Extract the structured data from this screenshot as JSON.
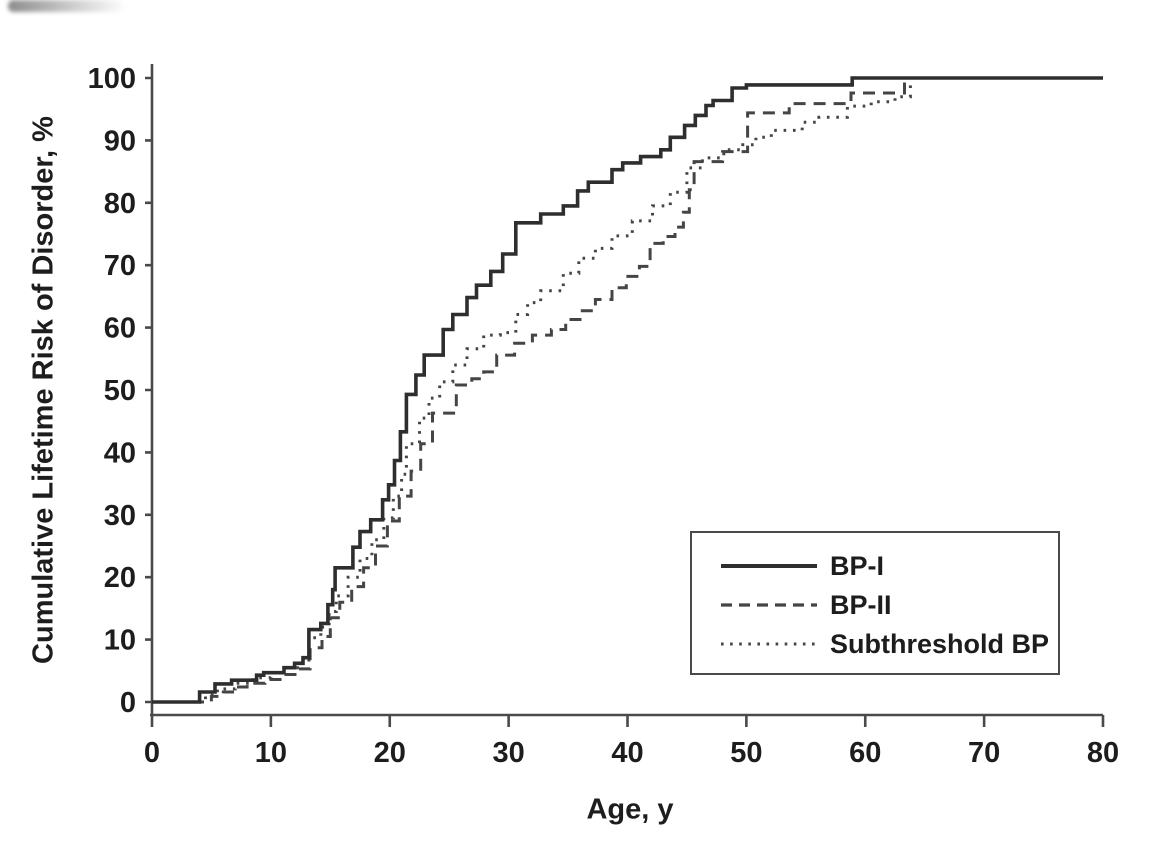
{
  "figure": {
    "background": "#ffffff",
    "artifact": "dark smudge at top-left edge"
  },
  "chart_data": {
    "type": "line",
    "subtype": "step-after",
    "title": "",
    "xlabel": "Age, y",
    "ylabel": "Cumulative Lifetime Risk of Disorder, %",
    "xlim": [
      0,
      80
    ],
    "ylim": [
      0,
      100
    ],
    "xticks": [
      0,
      10,
      20,
      30,
      40,
      50,
      60,
      70,
      80
    ],
    "yticks": [
      0,
      10,
      20,
      30,
      40,
      50,
      60,
      70,
      80,
      90,
      100
    ],
    "grid": false,
    "legend_position": "lower-right",
    "axis_color": "#4a4a4a",
    "text_color": "#1d1d1d",
    "series": [
      {
        "name": "BP-I",
        "line_style": "solid",
        "color": "#2e2e2e",
        "points": [
          [
            0,
            0
          ],
          [
            4,
            1.6
          ],
          [
            5.3,
            2.9
          ],
          [
            6.7,
            3.5
          ],
          [
            8.8,
            4.3
          ],
          [
            9.4,
            4.7
          ],
          [
            11.1,
            5.5
          ],
          [
            12,
            6.2
          ],
          [
            12.7,
            7.1
          ],
          [
            13.2,
            11.6
          ],
          [
            14.2,
            12.6
          ],
          [
            14.8,
            15.6
          ],
          [
            15.2,
            18.0
          ],
          [
            15.4,
            21.5
          ],
          [
            16.9,
            24.8
          ],
          [
            17.5,
            27.3
          ],
          [
            18.4,
            29.2
          ],
          [
            19.4,
            32.4
          ],
          [
            19.9,
            34.8
          ],
          [
            20.4,
            38.7
          ],
          [
            20.9,
            43.3
          ],
          [
            21.4,
            49.3
          ],
          [
            22.2,
            52.4
          ],
          [
            22.9,
            55.6
          ],
          [
            24.5,
            59.7
          ],
          [
            25.3,
            62.1
          ],
          [
            26.5,
            64.8
          ],
          [
            27.3,
            66.8
          ],
          [
            28.5,
            69.0
          ],
          [
            29.5,
            71.8
          ],
          [
            30.6,
            76.8
          ],
          [
            32.7,
            78.2
          ],
          [
            34.6,
            79.5
          ],
          [
            35.8,
            81.9
          ],
          [
            36.7,
            83.3
          ],
          [
            38.7,
            85.3
          ],
          [
            39.6,
            86.4
          ],
          [
            41.1,
            87.4
          ],
          [
            42.8,
            88.5
          ],
          [
            43.6,
            90.5
          ],
          [
            44.8,
            92.4
          ],
          [
            45.7,
            94.0
          ],
          [
            46.6,
            95.6
          ],
          [
            47.2,
            96.4
          ],
          [
            48.8,
            98.4
          ],
          [
            50.0,
            98.9
          ],
          [
            58.9,
            100
          ],
          [
            80,
            100
          ]
        ]
      },
      {
        "name": "BP-II",
        "line_style": "dashed",
        "color": "#454545",
        "points": [
          [
            0,
            0
          ],
          [
            5,
            0.9
          ],
          [
            6,
            1.6
          ],
          [
            7,
            2.4
          ],
          [
            8,
            3.0
          ],
          [
            9.5,
            3.6
          ],
          [
            11,
            4.4
          ],
          [
            12.3,
            5.3
          ],
          [
            13.3,
            8.7
          ],
          [
            14.3,
            10.5
          ],
          [
            15,
            13.5
          ],
          [
            15.8,
            16.0
          ],
          [
            16.8,
            18.5
          ],
          [
            17.8,
            21.5
          ],
          [
            18.8,
            25.0
          ],
          [
            19.8,
            29.0
          ],
          [
            20.8,
            33.0
          ],
          [
            21.8,
            37.0
          ],
          [
            22.6,
            41.4
          ],
          [
            23.6,
            46.3
          ],
          [
            25.6,
            50.8
          ],
          [
            26.9,
            51.8
          ],
          [
            27.9,
            52.9
          ],
          [
            29,
            55.6
          ],
          [
            30.5,
            57.5
          ],
          [
            32,
            58.8
          ],
          [
            33.6,
            59.7
          ],
          [
            34.8,
            61.3
          ],
          [
            36,
            62.7
          ],
          [
            37.3,
            64.5
          ],
          [
            38.7,
            66.4
          ],
          [
            39.9,
            68.2
          ],
          [
            41,
            69.8
          ],
          [
            41.9,
            73.5
          ],
          [
            43,
            74.6
          ],
          [
            44,
            76.1
          ],
          [
            44.7,
            78.5
          ],
          [
            45.2,
            82.1
          ],
          [
            45.6,
            86.6
          ],
          [
            48,
            88.2
          ],
          [
            50.1,
            94.4
          ],
          [
            53.6,
            95.9
          ],
          [
            58.8,
            97.6
          ],
          [
            63.3,
            100
          ],
          [
            80,
            100
          ]
        ]
      },
      {
        "name": "Subthreshold BP",
        "line_style": "dotted",
        "color": "#454545",
        "points": [
          [
            0,
            0
          ],
          [
            4.5,
            1.1
          ],
          [
            5.5,
            2.1
          ],
          [
            7,
            3.0
          ],
          [
            8.5,
            3.9
          ],
          [
            10,
            4.7
          ],
          [
            11.5,
            5.5
          ],
          [
            12.5,
            6.3
          ],
          [
            13.2,
            10.3
          ],
          [
            14.2,
            12.0
          ],
          [
            14.9,
            14.5
          ],
          [
            15.5,
            17.0
          ],
          [
            16.5,
            20.0
          ],
          [
            17.5,
            23.0
          ],
          [
            18.5,
            26.0
          ],
          [
            19.5,
            29.5
          ],
          [
            20.3,
            33.0
          ],
          [
            21.0,
            36.5
          ],
          [
            21.4,
            41.4
          ],
          [
            22.5,
            45.5
          ],
          [
            23.3,
            48.7
          ],
          [
            24.2,
            51.3
          ],
          [
            25.3,
            54.0
          ],
          [
            26.5,
            56.6
          ],
          [
            27.9,
            58.8
          ],
          [
            29.3,
            59.2
          ],
          [
            30.6,
            62.1
          ],
          [
            31.6,
            64.0
          ],
          [
            32.7,
            65.9
          ],
          [
            34.6,
            68.7
          ],
          [
            35.9,
            71.1
          ],
          [
            37.3,
            72.7
          ],
          [
            38.7,
            74.7
          ],
          [
            40.4,
            77.1
          ],
          [
            42.1,
            79.5
          ],
          [
            43.6,
            81.7
          ],
          [
            45.0,
            85.6
          ],
          [
            46.3,
            87.2
          ],
          [
            48.1,
            88.5
          ],
          [
            49.7,
            89.3
          ],
          [
            50.8,
            90.5
          ],
          [
            52.1,
            91.6
          ],
          [
            54.7,
            92.9
          ],
          [
            56.1,
            93.7
          ],
          [
            58.5,
            95.5
          ],
          [
            60.5,
            96.2
          ],
          [
            62.5,
            97.0
          ],
          [
            63.8,
            100
          ],
          [
            80,
            100
          ]
        ]
      }
    ]
  }
}
